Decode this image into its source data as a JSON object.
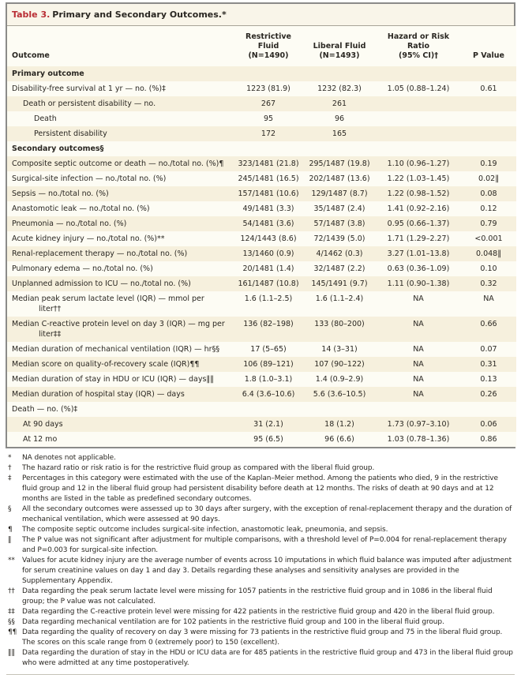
{
  "title": {
    "label": "Table 3.",
    "text": "Primary and Secondary Outcomes.*"
  },
  "colors": {
    "accent_red": "#b92d34",
    "tan_stripe": "#f6f0dd",
    "light_stripe": "#fdfcf4",
    "title_bg": "#f9f5e9",
    "border_gray": "#8b8b89",
    "text": "#2a2722"
  },
  "table": {
    "columns": [
      {
        "line1": "",
        "line2": "Outcome"
      },
      {
        "line1": "Restrictive Fluid",
        "line2": "(N=1490)"
      },
      {
        "line1": "Liberal Fluid",
        "line2": "(N=1493)"
      },
      {
        "line1": "Hazard or Risk Ratio",
        "line2": "(95% CI)†"
      },
      {
        "line1": "",
        "line2": "P Value"
      }
    ],
    "rows": [
      {
        "label": "Primary outcome",
        "section": true,
        "indent": 0
      },
      {
        "label": "Disability-free survival at 1 yr — no. (%)‡",
        "indent": 0,
        "r": "1223 (81.9)",
        "l": "1232 (82.3)",
        "h": "1.05 (0.88–1.24)",
        "p": "0.61"
      },
      {
        "label": "Death or persistent disability — no.",
        "indent": 1,
        "r": "267",
        "l": "261"
      },
      {
        "label": "Death",
        "indent": 2,
        "r": "95",
        "l": "96"
      },
      {
        "label": "Persistent disability",
        "indent": 2,
        "r": "172",
        "l": "165"
      },
      {
        "label": "Secondary outcomes§",
        "section": true,
        "indent": 0
      },
      {
        "label": "Composite septic outcome or death — no./total no. (%)¶",
        "indent": 0,
        "r": "323/1481 (21.8)",
        "l": "295/1487 (19.8)",
        "h": "1.10 (0.96–1.27)",
        "p": "0.19"
      },
      {
        "label": "Surgical-site infection — no./total no. (%)",
        "indent": 0,
        "r": "245/1481 (16.5)",
        "l": "202/1487 (13.6)",
        "h": "1.22 (1.03–1.45)",
        "p": "0.02‖"
      },
      {
        "label": "Sepsis — no./total no. (%)",
        "indent": 0,
        "r": "157/1481 (10.6)",
        "l": "129/1487 (8.7)",
        "h": "1.22 (0.98–1.52)",
        "p": "0.08"
      },
      {
        "label": "Anastomotic leak — no./total no. (%)",
        "indent": 0,
        "r": "49/1481 (3.3)",
        "l": "35/1487 (2.4)",
        "h": "1.41 (0.92–2.16)",
        "p": "0.12"
      },
      {
        "label": "Pneumonia — no./total no. (%)",
        "indent": 0,
        "r": "54/1481 (3.6)",
        "l": "57/1487 (3.8)",
        "h": "0.95 (0.66–1.37)",
        "p": "0.79"
      },
      {
        "label": "Acute kidney injury — no./total no. (%)**",
        "indent": 0,
        "r": "124/1443 (8.6)",
        "l": "72/1439 (5.0)",
        "h": "1.71 (1.29–2.27)",
        "p": "<0.001"
      },
      {
        "label": "Renal-replacement therapy — no./total no. (%)",
        "indent": 0,
        "r": "13/1460 (0.9)",
        "l": "4/1462 (0.3)",
        "h": "3.27 (1.01–13.8)",
        "p": "0.048‖"
      },
      {
        "label": "Pulmonary edema — no./total no. (%)",
        "indent": 0,
        "r": "20/1481 (1.4)",
        "l": "32/1487 (2.2)",
        "h": "0.63 (0.36–1.09)",
        "p": "0.10"
      },
      {
        "label": "Unplanned admission to ICU — no./total no. (%)",
        "indent": 0,
        "r": "161/1487 (10.8)",
        "l": "145/1491 (9.7)",
        "h": "1.11 (0.90–1.38)",
        "p": "0.32"
      },
      {
        "label": "Median peak serum lactate level (IQR) — mmol per\nliter††",
        "indent": 0,
        "r": "1.6 (1.1–2.5)",
        "l": "1.6 (1.1–2.4)",
        "h": "NA",
        "p": "NA"
      },
      {
        "label": "Median C-reactive protein level on day 3 (IQR) — mg per\nliter‡‡",
        "indent": 0,
        "r": "136 (82–198)",
        "l": "133 (80–200)",
        "h": "NA",
        "p": "0.66"
      },
      {
        "label": "Median duration of mechanical ventilation (IQR) — hr§§",
        "indent": 0,
        "r": "17 (5–65)",
        "l": "14 (3–31)",
        "h": "NA",
        "p": "0.07"
      },
      {
        "label": "Median score on quality-of-recovery scale (IQR)¶¶",
        "indent": 0,
        "r": "106 (89–121)",
        "l": "107 (90–122)",
        "h": "NA",
        "p": "0.31"
      },
      {
        "label": "Median duration of stay in HDU or ICU (IQR) — days‖‖",
        "indent": 0,
        "r": "1.8 (1.0–3.1)",
        "l": "1.4 (0.9–2.9)",
        "h": "NA",
        "p": "0.13"
      },
      {
        "label": "Median duration of hospital stay (IQR) — days",
        "indent": 0,
        "r": "6.4 (3.6–10.6)",
        "l": "5.6 (3.6–10.5)",
        "h": "NA",
        "p": "0.26"
      },
      {
        "label": "Death — no. (%)‡",
        "indent": 0
      },
      {
        "label": "At 90 days",
        "indent": 1,
        "r": "31 (2.1)",
        "l": "18 (1.2)",
        "h": "1.73 (0.97–3.10)",
        "p": "0.06"
      },
      {
        "label": "At 12 mo",
        "indent": 1,
        "r": "95 (6.5)",
        "l": "96 (6.6)",
        "h": "1.03 (0.78–1.36)",
        "p": "0.86"
      }
    ]
  },
  "footnotes": [
    {
      "marker": "*",
      "text": "NA denotes not applicable."
    },
    {
      "marker": "†",
      "text": "The hazard ratio or risk ratio is for the restrictive fluid group as compared with the liberal fluid group."
    },
    {
      "marker": "‡",
      "text": "Percentages in this category were estimated with the use of the Kaplan–Meier method. Among the patients who died, 9 in the restrictive fluid group and 12 in the liberal fluid group had persistent disability before death at 12 months. The risks of death at 90 days and at 12 months are listed in the table as predefined secondary outcomes."
    },
    {
      "marker": "§",
      "text": "All the secondary outcomes were assessed up to 30 days after surgery, with the exception of renal-replacement therapy and the duration of mechanical ventilation, which were assessed at 90 days."
    },
    {
      "marker": "¶",
      "text": "The composite septic outcome includes surgical-site infection, anastomotic leak, pneumonia, and sepsis."
    },
    {
      "marker": "‖",
      "text": "The P value was not significant after adjustment for multiple comparisons, with a threshold level of P=0.004 for renal-replacement therapy and P=0.003 for surgical-site infection."
    },
    {
      "marker": "**",
      "text": "Values for acute kidney injury are the average number of events across 10 imputations in which fluid balance was imputed after adjustment for serum creatinine values on day 1 and day 3. Details regarding these analyses and sensitivity analyses are provided in the Supplementary Appendix."
    },
    {
      "marker": "††",
      "text": "Data regarding the peak serum lactate level were missing for 1057 patients in the restrictive fluid group and in 1086 in the liberal fluid group; the P value was not calculated."
    },
    {
      "marker": "‡‡",
      "text": "Data regarding the C-reactive protein level were missing for 422 patients in the restrictive fluid group and 420 in the liberal fluid group."
    },
    {
      "marker": "§§",
      "text": "Data regarding mechanical ventilation are for 102 patients in the restrictive fluid group and 100 in the liberal fluid group."
    },
    {
      "marker": "¶¶",
      "text": "Data regarding the quality of recovery on day 3 were missing for 73 patients in the restrictive fluid group and 75 in the liberal fluid group. The scores on this scale range from 0 (extremely poor) to 150 (excellent)."
    },
    {
      "marker": "‖‖",
      "text": "Data regarding the duration of stay in the HDU or ICU data are for 485 patients in the restrictive fluid group and 473 in the liberal fluid group who were admitted at any time postoperatively."
    }
  ]
}
